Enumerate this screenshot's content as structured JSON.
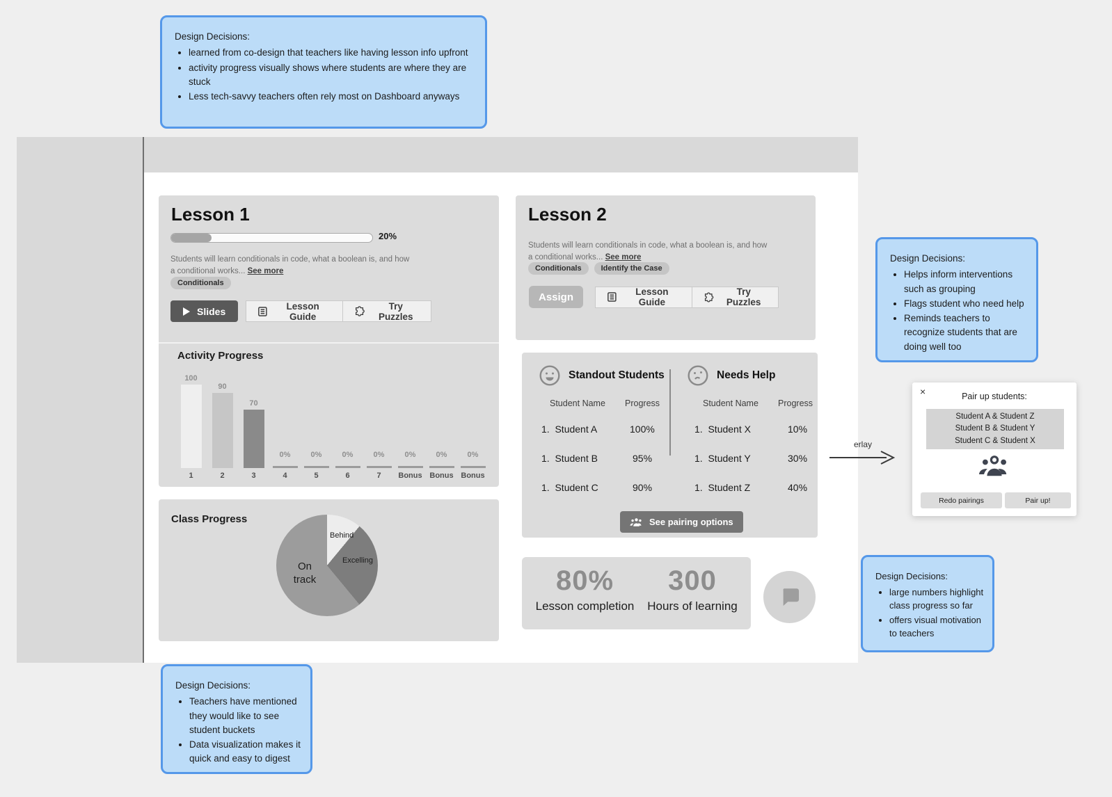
{
  "annotations": {
    "top": {
      "title": "Design Decisions:",
      "bullets": [
        "learned from co-design that teachers like having lesson info upfront",
        "activity progress visually shows where students are where they are stuck",
        "Less tech-savvy teachers often rely most on Dashboard anyways"
      ]
    },
    "right": {
      "title": "Design Decisions:",
      "bullets": [
        "Helps inform interventions such as grouping",
        "Flags student who need help",
        "Reminds teachers to recognize students that are doing well too"
      ]
    },
    "bottom_right": {
      "title": "Design Decisions:",
      "bullets": [
        "large numbers highlight class progress so far",
        "offers visual motivation to teachers"
      ]
    },
    "bottom_left": {
      "title": "Design Decisions:",
      "bullets": [
        "Teachers have mentioned they would like to see student buckets",
        "Data visualization makes it quick and easy to digest"
      ]
    }
  },
  "lesson1": {
    "title": "Lesson 1",
    "progress_percent": 20,
    "progress_label": "20%",
    "description": "Students will learn conditionals in code, what a boolean is, and how a conditional works...",
    "see_more": "See more",
    "tags": [
      "Conditionals"
    ],
    "slides_button": "Slides",
    "lesson_guide_button": "Lesson Guide",
    "try_puzzles_button": "Try Puzzles",
    "activity_title": "Activity Progress"
  },
  "lesson2": {
    "title": "Lesson 2",
    "description": "Students will learn conditionals in code, what a boolean is, and how a conditional works...",
    "see_more": "See more",
    "tags": [
      "Conditionals",
      "Identify the Case"
    ],
    "assign_button": "Assign",
    "lesson_guide_button": "Lesson Guide",
    "try_puzzles_button": "Try Puzzles"
  },
  "class_progress": {
    "title": "Class Progress"
  },
  "chart_data": [
    {
      "type": "bar",
      "title": "Activity Progress",
      "categories": [
        "1",
        "2",
        "3",
        "4",
        "5",
        "6",
        "7",
        "Bonus",
        "Bonus",
        "Bonus"
      ],
      "values": [
        100,
        90,
        70,
        0,
        0,
        0,
        0,
        0,
        0,
        0
      ],
      "value_labels": [
        "100",
        "90",
        "70",
        "0%",
        "0%",
        "0%",
        "0%",
        "0%",
        "0%",
        "0%"
      ],
      "bar_colors": [
        "#efefef",
        "#c6c6c6",
        "#8a8a8a"
      ],
      "xlabel": "",
      "ylabel": "",
      "ylim": [
        0,
        100
      ],
      "grid": false,
      "legend": false
    },
    {
      "type": "pie",
      "title": "Class Progress",
      "segments": [
        {
          "label": "Behind",
          "percent": 11,
          "color": "#ededed"
        },
        {
          "label": "Excelling",
          "percent": 28,
          "color": "#7d7d7d"
        },
        {
          "label": "On track",
          "percent": 61,
          "color": "#9c9c9c"
        }
      ],
      "legend": false
    }
  ],
  "students_panel": {
    "standout": {
      "title": "Standout Students",
      "name_header": "Student Name",
      "progress_header": "Progress",
      "rows": [
        {
          "num": "1.",
          "name": "Student A",
          "progress": "100%"
        },
        {
          "num": "1.",
          "name": "Student B",
          "progress": "95%"
        },
        {
          "num": "1.",
          "name": "Student C",
          "progress": "90%"
        }
      ]
    },
    "needs_help": {
      "title": "Needs Help",
      "name_header": "Student Name",
      "progress_header": "Progress",
      "rows": [
        {
          "num": "1.",
          "name": "Student X",
          "progress": "10%"
        },
        {
          "num": "1.",
          "name": "Student Y",
          "progress": "30%"
        },
        {
          "num": "1.",
          "name": "Student Z",
          "progress": "40%"
        }
      ]
    },
    "pairing_button": "See pairing options"
  },
  "stats": {
    "completion_value": "80%",
    "completion_label": "Lesson completion",
    "hours_value": "300",
    "hours_label": "Hours of learning"
  },
  "pairing_overlay": {
    "close_label": "×",
    "title": "Pair up students:",
    "pairs": [
      "Student A & Student Z",
      "Student B & Student Y",
      "Student C & Student X"
    ],
    "redo_button": "Redo pairings",
    "pair_button": "Pair up!"
  },
  "arrow_label": "erlay",
  "colors": {
    "annotation_fill": "#bcdcf8",
    "annotation_border": "#5598e9",
    "card_gray": "#dcdcdc",
    "dark_button": "#595959",
    "progress_fill": "#a5a5a5"
  }
}
